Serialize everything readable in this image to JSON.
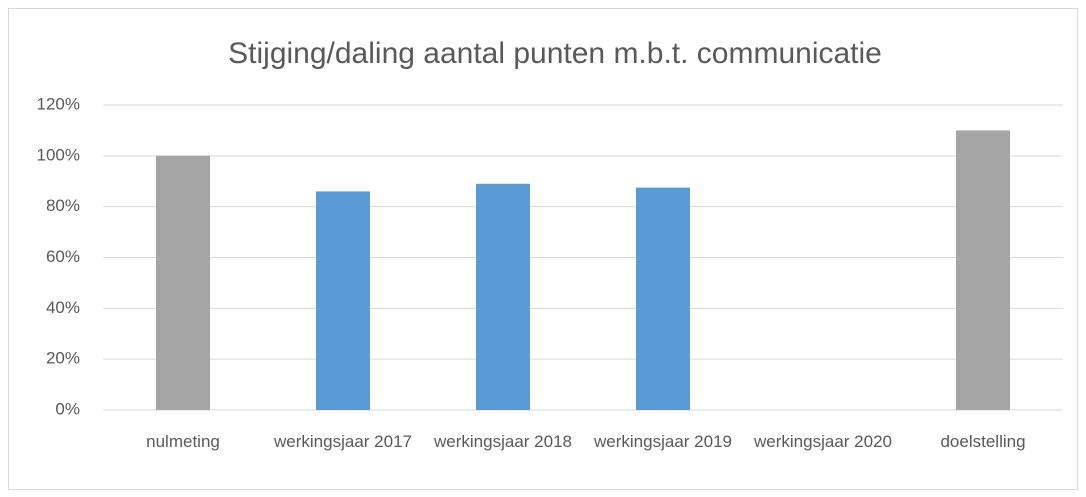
{
  "chart_data": {
    "type": "bar",
    "title": "Stijging/daling aantal punten m.b.t. communicatie",
    "categories": [
      "nulmeting",
      "werkingsjaar 2017",
      "werkingsjaar 2018",
      "werkingsjaar 2019",
      "werkingsjaar 2020",
      "doelstelling"
    ],
    "values": [
      100,
      86,
      89,
      87.5,
      null,
      110
    ],
    "colors": [
      "#a5a5a5",
      "#5b9bd5",
      "#5b9bd5",
      "#5b9bd5",
      "#5b9bd5",
      "#a5a5a5"
    ],
    "ylim": [
      0,
      120
    ],
    "yticks": [
      {
        "value": 0,
        "label": "0%"
      },
      {
        "value": 20,
        "label": "20%"
      },
      {
        "value": 40,
        "label": "40%"
      },
      {
        "value": 60,
        "label": "60%"
      },
      {
        "value": 80,
        "label": "80%"
      },
      {
        "value": 100,
        "label": "100%"
      },
      {
        "value": 120,
        "label": "120%"
      }
    ],
    "grid": true
  }
}
